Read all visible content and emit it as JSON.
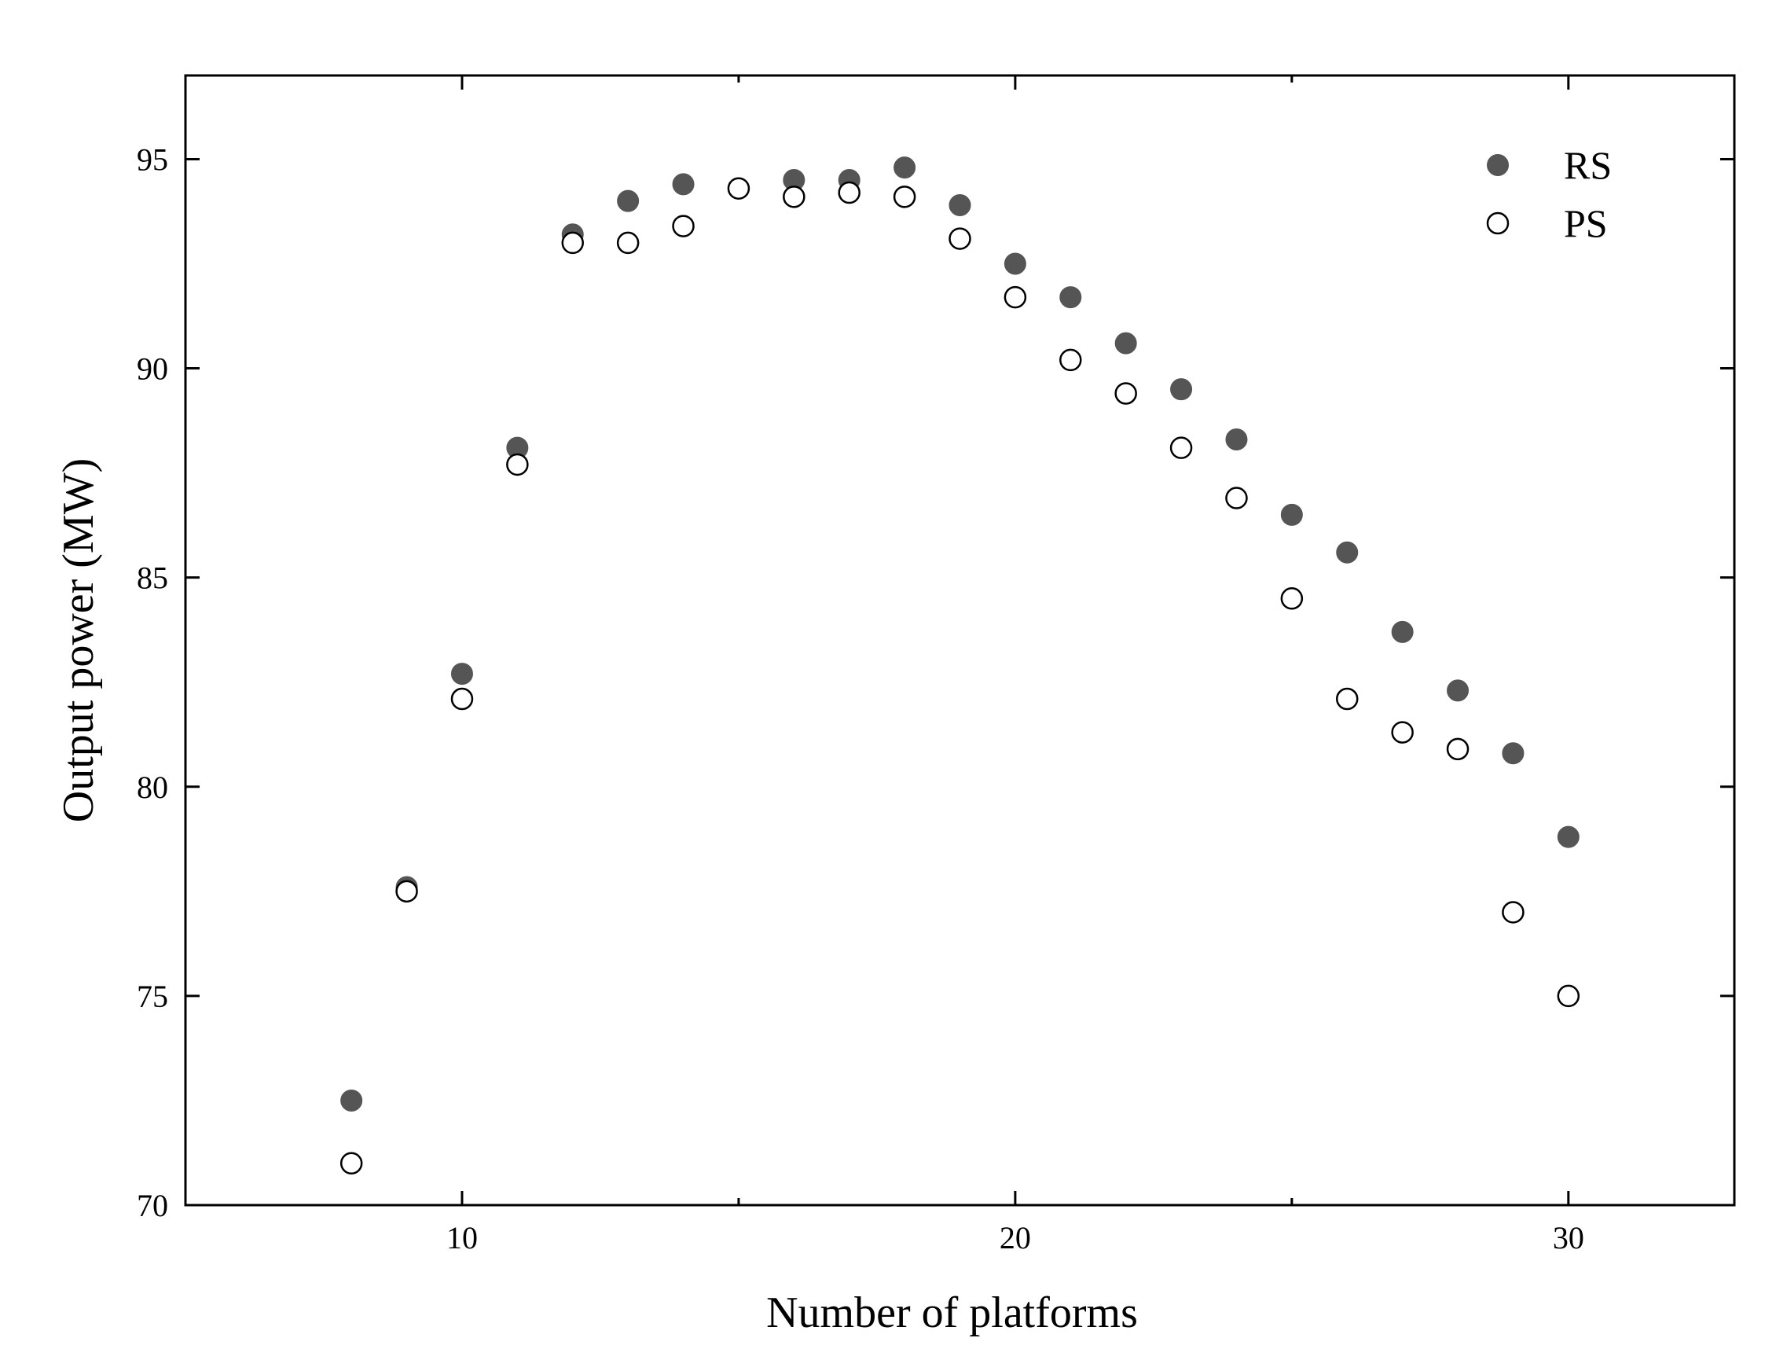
{
  "chart_data": {
    "type": "scatter",
    "title": "",
    "xlabel": "Number of platforms",
    "ylabel": "Output power (MW)",
    "xlim": [
      5,
      33
    ],
    "ylim": [
      70,
      97
    ],
    "xticks": [
      10,
      20,
      30
    ],
    "yticks": [
      70,
      75,
      80,
      85,
      90,
      95
    ],
    "legend_position": "top-right",
    "grid": false,
    "series": [
      {
        "name": "RS",
        "marker": "filled-circle",
        "color": "#555555",
        "x": [
          8,
          9,
          10,
          11,
          12,
          13,
          14,
          16,
          17,
          18,
          19,
          20,
          21,
          22,
          23,
          24,
          25,
          26,
          27,
          28,
          29,
          30
        ],
        "y": [
          72.5,
          77.6,
          82.7,
          88.1,
          93.2,
          94.0,
          94.4,
          94.5,
          94.5,
          94.8,
          93.9,
          92.5,
          91.7,
          90.6,
          89.5,
          88.3,
          86.5,
          85.6,
          83.7,
          82.3,
          80.8,
          78.8
        ]
      },
      {
        "name": "PS",
        "marker": "open-circle",
        "color": "#000000",
        "x": [
          8,
          9,
          10,
          11,
          12,
          13,
          14,
          15,
          16,
          17,
          18,
          19,
          20,
          21,
          22,
          23,
          24,
          25,
          26,
          27,
          28,
          29,
          30
        ],
        "y": [
          71.0,
          77.5,
          82.1,
          87.7,
          93.0,
          93.0,
          93.4,
          94.3,
          94.1,
          94.2,
          94.1,
          93.1,
          91.7,
          90.2,
          89.4,
          88.1,
          86.9,
          84.5,
          82.1,
          81.3,
          80.9,
          77.0,
          75.0
        ]
      }
    ]
  }
}
